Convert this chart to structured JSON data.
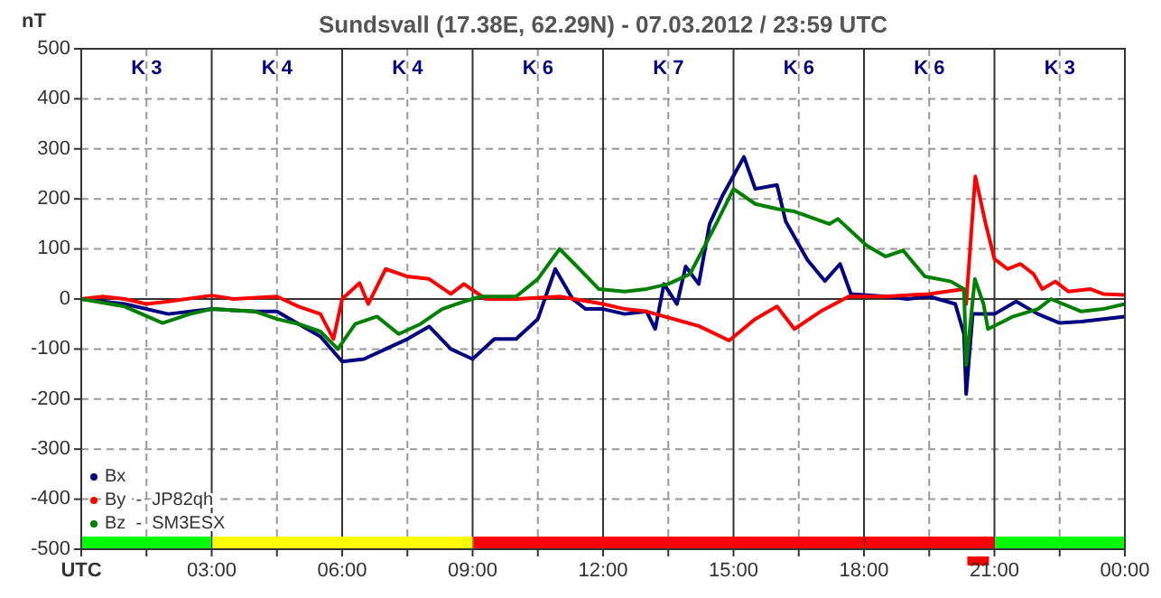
{
  "chart_data": {
    "type": "line",
    "title": "Sundsvall (17.38E, 62.29N) - 07.03.2012 / 23:59  UTC",
    "ylabel": "nT",
    "xlim": [
      0,
      24
    ],
    "ylim": [
      -500,
      500
    ],
    "xticks": [
      {
        "value": 0,
        "label": "UTC"
      },
      {
        "value": 1.5,
        "label": null
      },
      {
        "value": 3,
        "label": "03:00"
      },
      {
        "value": 4.5,
        "label": null
      },
      {
        "value": 6,
        "label": "06:00"
      },
      {
        "value": 7.5,
        "label": null
      },
      {
        "value": 9,
        "label": "09:00"
      },
      {
        "value": 10.5,
        "label": null
      },
      {
        "value": 12,
        "label": "12:00"
      },
      {
        "value": 13.5,
        "label": null
      },
      {
        "value": 15,
        "label": "15:00"
      },
      {
        "value": 16.5,
        "label": null
      },
      {
        "value": 18,
        "label": "18:00"
      },
      {
        "value": 19.5,
        "label": null
      },
      {
        "value": 21,
        "label": "21:00"
      },
      {
        "value": 22.5,
        "label": null
      },
      {
        "value": 24,
        "label": "00:00"
      }
    ],
    "yticks": [
      -500,
      -400,
      -300,
      -200,
      -100,
      0,
      100,
      200,
      300,
      400,
      500
    ],
    "grid": true,
    "legend": "bottom left",
    "line_style": "solid",
    "marker": "none",
    "series": [
      {
        "name": "Bx",
        "color": "#000080",
        "x": [
          0,
          1,
          2,
          3,
          4,
          4.5,
          5,
          5.5,
          6,
          6.5,
          7,
          7.5,
          8,
          8.5,
          9,
          9.5,
          10,
          10.5,
          10.9,
          11.3,
          11.6,
          12,
          12.5,
          13,
          13.2,
          13.4,
          13.7,
          13.9,
          14.2,
          14.45,
          14.75,
          15.24,
          15.5,
          16,
          16.2,
          16.7,
          17.1,
          17.45,
          17.7,
          18.5,
          19,
          19.5,
          20.1,
          20.3,
          20.35,
          20.5,
          20.7,
          21,
          21.5,
          22,
          22.5,
          23,
          23.5,
          24
        ],
        "values": [
          0,
          -10,
          -30,
          -20,
          -25,
          -25,
          -50,
          -75,
          -125,
          -120,
          -100,
          -80,
          -55,
          -100,
          -120,
          -80,
          -80,
          -40,
          60,
          0,
          -20,
          -20,
          -30,
          -25,
          -60,
          30,
          -10,
          65,
          30,
          150,
          207,
          284,
          220,
          228,
          155,
          78,
          36,
          70,
          10,
          5,
          0,
          5,
          -10,
          -70,
          -190,
          -30,
          -30,
          -30,
          -5,
          -30,
          -48,
          -45,
          -40,
          -35
        ]
      },
      {
        "name": "By  -  JP82qh",
        "color": "#ff0000",
        "x": [
          0,
          0.5,
          1,
          1.5,
          2,
          3,
          3.5,
          4.5,
          5,
          5.5,
          5.8,
          6,
          6.4,
          6.6,
          7,
          7.5,
          8,
          8.5,
          8.8,
          9.3,
          10,
          11,
          12,
          12.5,
          13,
          14.2,
          14.9,
          15.5,
          16,
          16.4,
          17,
          17.65,
          18.5,
          19.5,
          20.3,
          20.35,
          20.56,
          20.8,
          21,
          21.3,
          21.6,
          21.9,
          22.1,
          22.4,
          22.7,
          23.2,
          23.5,
          24
        ],
        "values": [
          0,
          5,
          0,
          -10,
          -5,
          7,
          0,
          5,
          -15,
          -30,
          -80,
          0,
          32,
          -10,
          60,
          45,
          40,
          10,
          30,
          0,
          0,
          5,
          -10,
          -20,
          -25,
          -54,
          -83,
          -40,
          -15,
          -60,
          -25,
          5,
          5,
          10,
          20,
          -10,
          245,
          150,
          80,
          60,
          70,
          50,
          20,
          35,
          15,
          20,
          10,
          8
        ]
      },
      {
        "name": "Bz  -  SM3ESX",
        "color": "#008000",
        "x": [
          0,
          1,
          1.87,
          2.5,
          3,
          4,
          4.5,
          5,
          5.5,
          5.9,
          6.3,
          6.8,
          7.3,
          7.8,
          8.3,
          8.8,
          9.2,
          10,
          10.5,
          11,
          11.4,
          11.9,
          12.5,
          13,
          13.5,
          14,
          14.6,
          15,
          15.5,
          16,
          16.4,
          17.2,
          17.4,
          18.06,
          18.5,
          18.9,
          19.4,
          20,
          20.3,
          20.35,
          20.55,
          20.75,
          20.85,
          21.2,
          21.4,
          22,
          22.3,
          23,
          23.5,
          24
        ],
        "values": [
          0,
          -15,
          -48,
          -30,
          -20,
          -25,
          -40,
          -50,
          -65,
          -100,
          -50,
          -35,
          -70,
          -50,
          -20,
          -5,
          5,
          5,
          40,
          100,
          65,
          20,
          15,
          20,
          30,
          50,
          150,
          220,
          190,
          180,
          175,
          150,
          160,
          107,
          85,
          97,
          45,
          35,
          20,
          -132,
          40,
          -10,
          -60,
          -45,
          -36,
          -20,
          0,
          -25,
          -20,
          -10
        ]
      }
    ],
    "annotations": [
      "K 3",
      "K 4",
      "K 4",
      "K 6",
      "K 7",
      "K 6",
      "K 6",
      "K 3"
    ]
  }
}
